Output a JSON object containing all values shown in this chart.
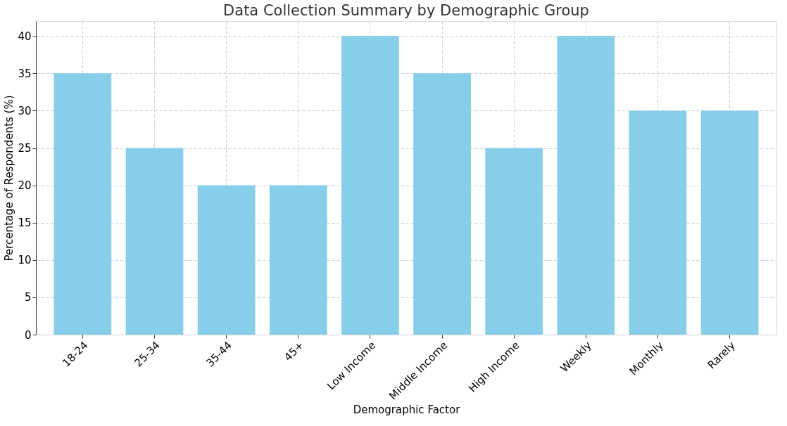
{
  "chart_data": {
    "type": "bar",
    "title": "Data Collection Summary by Demographic Group",
    "xlabel": "Demographic Factor",
    "ylabel": "Percentage of Respondents (%)",
    "categories": [
      "18-24",
      "25-34",
      "35-44",
      "45+",
      "Low Income",
      "Middle Income",
      "High Income",
      "Weekly",
      "Monthly",
      "Rarely"
    ],
    "values": [
      35,
      25,
      20,
      20,
      40,
      35,
      25,
      40,
      30,
      30
    ],
    "color": "#87ceeb",
    "ylim": [
      0,
      42
    ],
    "yticks": [
      0,
      5,
      10,
      15,
      20,
      25,
      30,
      35,
      40
    ],
    "grid": true
  }
}
